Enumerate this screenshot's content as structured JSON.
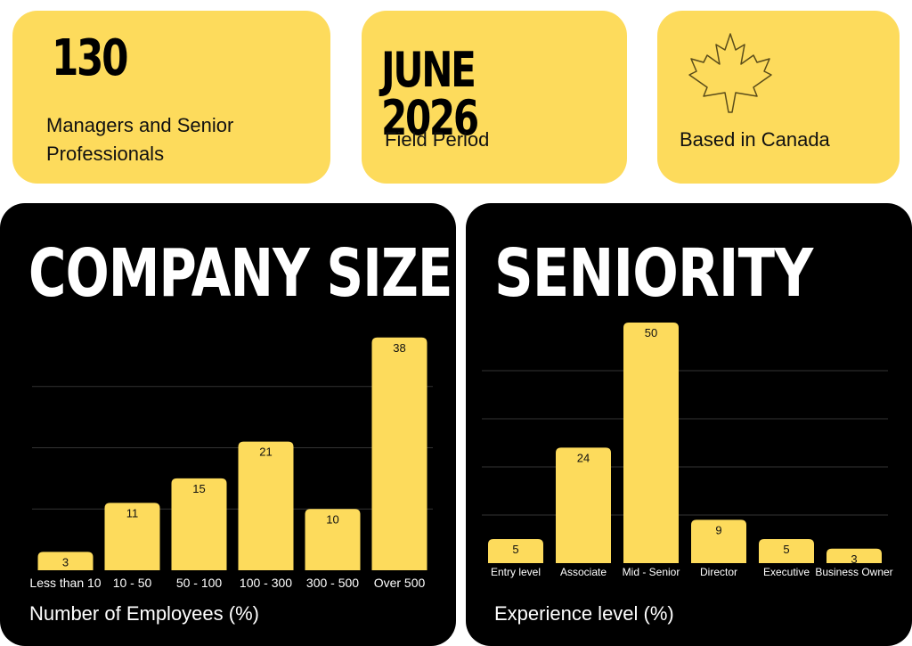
{
  "stats": [
    {
      "big": "130",
      "text_line1": "Managers and Senior",
      "text_line2": "Professionals"
    },
    {
      "big": "JUNE 2026",
      "text": "Field Period"
    },
    {
      "text": "Based in Canada",
      "icon": "maple-leaf-icon"
    }
  ],
  "colors": {
    "accent": "#fddb5c",
    "panel": "#000000",
    "grid": "#333333"
  },
  "chart_data": [
    {
      "type": "bar",
      "title": "COMPANY SIZE",
      "xlabel": "Number of Employees (%)",
      "ylabel": "",
      "categories": [
        "Less than 10",
        "10 - 50",
        "50 - 100",
        "100 - 300",
        "300 - 500",
        "Over 500"
      ],
      "values": [
        3,
        11,
        15,
        21,
        10,
        38
      ],
      "ylim": [
        0,
        40
      ],
      "grid": true
    },
    {
      "type": "bar",
      "title": "SENIORITY",
      "xlabel": "Experience level (%)",
      "ylabel": "",
      "categories": [
        "Entry level",
        "Associate",
        "Mid - Senior",
        "Director",
        "Executive",
        "Business Owner"
      ],
      "values": [
        5,
        24,
        50,
        9,
        5,
        3
      ],
      "ylim": [
        0,
        50
      ],
      "grid": true
    }
  ]
}
